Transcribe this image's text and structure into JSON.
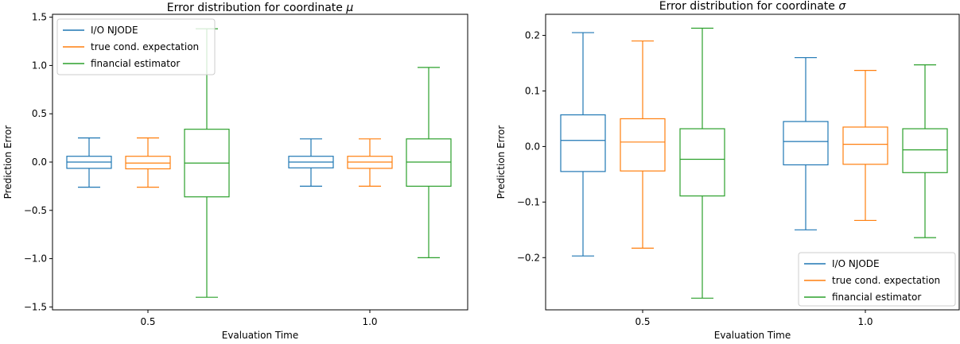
{
  "colors": {
    "io_njode": "#1f77b4",
    "true_cond": "#ff7f0e",
    "financial": "#2ca02c"
  },
  "chart_data": [
    {
      "type": "box",
      "title_prefix": "Error distribution for coordinate ",
      "title_symbol": "μ",
      "xlabel": "Evaluation Time",
      "ylabel": "Prediction Error",
      "ylim": [
        -1.53,
        1.53
      ],
      "yticks": [
        -1.5,
        -1.0,
        -0.5,
        0.0,
        0.5,
        1.0,
        1.5
      ],
      "ytick_labels": [
        "−1.5",
        "−1.0",
        "−0.5",
        "0.0",
        "0.5",
        "1.0",
        "1.5"
      ],
      "categories": [
        "0.5",
        "1.0"
      ],
      "legend_position": "top-left",
      "series": [
        {
          "name": "I/O NJODE",
          "color_key": "io_njode",
          "boxes": [
            {
              "whisker_low": -0.26,
              "q1": -0.065,
              "median": 0.0,
              "q3": 0.06,
              "whisker_high": 0.25
            },
            {
              "whisker_low": -0.25,
              "q1": -0.06,
              "median": 0.0,
              "q3": 0.06,
              "whisker_high": 0.24
            }
          ]
        },
        {
          "name": "true cond. expectation",
          "color_key": "true_cond",
          "boxes": [
            {
              "whisker_low": -0.26,
              "q1": -0.07,
              "median": -0.01,
              "q3": 0.06,
              "whisker_high": 0.25
            },
            {
              "whisker_low": -0.25,
              "q1": -0.065,
              "median": 0.0,
              "q3": 0.06,
              "whisker_high": 0.24
            }
          ]
        },
        {
          "name": "financial estimator",
          "color_key": "financial",
          "boxes": [
            {
              "whisker_low": -1.4,
              "q1": -0.36,
              "median": -0.01,
              "q3": 0.34,
              "whisker_high": 1.38
            },
            {
              "whisker_low": -0.99,
              "q1": -0.25,
              "median": 0.0,
              "q3": 0.24,
              "whisker_high": 0.98
            }
          ]
        }
      ]
    },
    {
      "type": "box",
      "title_prefix": "Error distribution for coordinate ",
      "title_symbol": "σ",
      "xlabel": "Evaluation Time",
      "ylabel": "Prediction Error",
      "ylim": [
        -0.294,
        0.238
      ],
      "yticks": [
        -0.2,
        -0.1,
        0.0,
        0.1,
        0.2
      ],
      "ytick_labels": [
        "−0.2",
        "−0.1",
        "0.0",
        "0.1",
        "0.2"
      ],
      "categories": [
        "0.5",
        "1.0"
      ],
      "legend_position": "bottom-right",
      "series": [
        {
          "name": "I/O NJODE",
          "color_key": "io_njode",
          "boxes": [
            {
              "whisker_low": -0.197,
              "q1": -0.045,
              "median": 0.011,
              "q3": 0.057,
              "whisker_high": 0.205
            },
            {
              "whisker_low": -0.15,
              "q1": -0.033,
              "median": 0.009,
              "q3": 0.045,
              "whisker_high": 0.16
            }
          ]
        },
        {
          "name": "true cond. expectation",
          "color_key": "true_cond",
          "boxes": [
            {
              "whisker_low": -0.183,
              "q1": -0.044,
              "median": 0.008,
              "q3": 0.05,
              "whisker_high": 0.19
            },
            {
              "whisker_low": -0.133,
              "q1": -0.032,
              "median": 0.004,
              "q3": 0.035,
              "whisker_high": 0.137
            }
          ]
        },
        {
          "name": "financial estimator",
          "color_key": "financial",
          "boxes": [
            {
              "whisker_low": -0.273,
              "q1": -0.089,
              "median": -0.023,
              "q3": 0.032,
              "whisker_high": 0.213
            },
            {
              "whisker_low": -0.164,
              "q1": -0.047,
              "median": -0.006,
              "q3": 0.032,
              "whisker_high": 0.147
            }
          ]
        }
      ]
    }
  ]
}
